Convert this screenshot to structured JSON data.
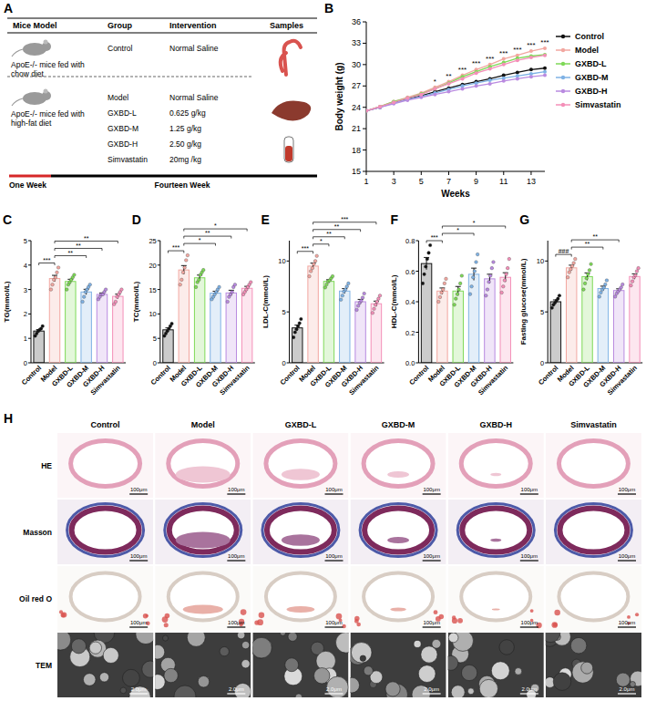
{
  "panel_letters": [
    "A",
    "B",
    "C",
    "D",
    "E",
    "F",
    "G",
    "H"
  ],
  "table": {
    "header": [
      "Mice Model",
      "Group",
      "Intervention",
      "Samples"
    ],
    "models": [
      {
        "label": "ApoE-/- mice fed with chow diet",
        "groups": [
          {
            "group": "Control",
            "intervention": "Normal Saline"
          }
        ]
      },
      {
        "label": "ApoE-/- mice fed with high-fat diet",
        "groups": [
          {
            "group": "Model",
            "intervention": "Normal Saline"
          },
          {
            "group": "GXBD-L",
            "intervention": "0.625 g/kg"
          },
          {
            "group": "GXBD-M",
            "intervention": "1.25 g/kg"
          },
          {
            "group": "GXBD-H",
            "intervention": "2.50 g/kg"
          },
          {
            "group": "Simvastatin",
            "intervention": "20mg /kg"
          }
        ]
      }
    ],
    "timeline": [
      "One Week",
      "Fourteen Week"
    ]
  },
  "chart_data": [
    {
      "type": "line",
      "x_label": "Weeks",
      "y_label": "Body weight (g)",
      "x": [
        1,
        2,
        3,
        4,
        5,
        6,
        7,
        8,
        9,
        10,
        11,
        12,
        13,
        14
      ],
      "xlim": [
        1,
        14
      ],
      "xticks": [
        1,
        3,
        5,
        7,
        9,
        11,
        13
      ],
      "ylim": [
        15,
        36
      ],
      "yticks": [
        15,
        18,
        21,
        24,
        27,
        30,
        33,
        36
      ],
      "legend": "right",
      "marker": "circle",
      "series": [
        {
          "name": "Control",
          "color": "#111111",
          "values": [
            23.5,
            24.0,
            24.7,
            25.2,
            25.6,
            26.2,
            26.7,
            27.2,
            27.6,
            28.0,
            28.5,
            28.9,
            29.3,
            29.5
          ]
        },
        {
          "name": "Model",
          "color": "#f2a7a0",
          "values": [
            23.5,
            24.1,
            24.8,
            25.4,
            26.0,
            26.8,
            27.6,
            28.5,
            29.3,
            30.0,
            30.8,
            31.3,
            31.9,
            32.3
          ]
        },
        {
          "name": "GXBD-L",
          "color": "#7ed957",
          "values": [
            23.5,
            24.1,
            24.8,
            25.3,
            25.9,
            26.6,
            27.4,
            28.3,
            29.0,
            29.7,
            30.3,
            30.9,
            31.2,
            31.4
          ]
        },
        {
          "name": "GXBD-M",
          "color": "#7fb2e5",
          "values": [
            23.5,
            24.0,
            24.6,
            25.1,
            25.5,
            26.0,
            26.5,
            27.0,
            27.4,
            27.8,
            28.1,
            28.4,
            28.7,
            29.0
          ]
        },
        {
          "name": "GXBD-H",
          "color": "#b98ae0",
          "values": [
            23.5,
            24.0,
            24.5,
            25.0,
            25.4,
            25.8,
            26.2,
            26.6,
            27.0,
            27.3,
            27.7,
            28.0,
            28.3,
            28.5
          ]
        },
        {
          "name": "Simvastatin",
          "color": "#f48fb8",
          "values": [
            23.5,
            24.1,
            24.7,
            25.3,
            25.8,
            26.6,
            27.3,
            28.0,
            28.8,
            29.4,
            30.0,
            30.6,
            31.0,
            31.3
          ]
        }
      ],
      "annotations": [
        {
          "x": 6,
          "text": "*"
        },
        {
          "x": 7,
          "text": "**"
        },
        {
          "x": 8,
          "text": "***"
        },
        {
          "x": 9,
          "text": "***"
        },
        {
          "x": 10,
          "text": "***"
        },
        {
          "x": 11,
          "text": "***"
        },
        {
          "x": 12,
          "text": "***"
        },
        {
          "x": 13,
          "text": "***"
        },
        {
          "x": 14,
          "text": "***"
        }
      ]
    },
    {
      "type": "bar",
      "y_label": "TG(mmol/L)",
      "categories": [
        "Control",
        "Model",
        "GXBD-L",
        "GXBD-M",
        "GXBD-H",
        "Simvastatin"
      ],
      "colors": [
        "#111111",
        "#f2a7a0",
        "#7ed957",
        "#7fb2e5",
        "#b98ae0",
        "#f48fb8"
      ],
      "ylim": [
        0,
        5
      ],
      "yticks": [
        0,
        1,
        2,
        3,
        4,
        5
      ],
      "values": [
        1.3,
        3.45,
        3.33,
        2.9,
        2.8,
        2.72
      ],
      "errors": [
        0.06,
        0.13,
        0.09,
        0.11,
        0.06,
        0.09
      ],
      "points": [
        [
          1.1,
          1.2,
          1.3,
          1.35,
          1.4,
          1.5
        ],
        [
          3.0,
          3.2,
          3.4,
          3.5,
          3.7,
          3.9
        ],
        [
          3.0,
          3.2,
          3.3,
          3.4,
          3.5,
          3.6
        ],
        [
          2.5,
          2.7,
          2.9,
          3.0,
          3.1,
          3.2
        ],
        [
          2.6,
          2.7,
          2.8,
          2.8,
          2.9,
          3.0
        ],
        [
          2.4,
          2.5,
          2.7,
          2.8,
          2.9,
          3.0
        ]
      ],
      "brackets": [
        {
          "from": "Control",
          "to": "Model",
          "text": "***"
        },
        {
          "from": "Model",
          "to": "GXBD-M",
          "text": "**"
        },
        {
          "from": "Model",
          "to": "GXBD-H",
          "text": "**"
        },
        {
          "from": "Model",
          "to": "Simvastatin",
          "text": "**"
        }
      ]
    },
    {
      "type": "bar",
      "y_label": "TC(mmol/L)",
      "categories": [
        "Control",
        "Model",
        "GXBD-L",
        "GXBD-M",
        "GXBD-H",
        "Simvastatin"
      ],
      "colors": [
        "#111111",
        "#f2a7a0",
        "#7ed957",
        "#7fb2e5",
        "#b98ae0",
        "#f48fb8"
      ],
      "ylim": [
        0,
        25
      ],
      "yticks": [
        0,
        5,
        10,
        15,
        20,
        25
      ],
      "values": [
        6.75,
        19,
        17.4,
        14.25,
        14.3,
        15.25
      ],
      "errors": [
        0.4,
        0.9,
        0.55,
        0.4,
        0.55,
        0.4
      ],
      "points": [
        [
          5.5,
          6.0,
          6.5,
          7.0,
          7.5,
          8.0
        ],
        [
          16,
          17,
          18.5,
          19.5,
          21,
          22
        ],
        [
          15.5,
          16.5,
          17,
          18,
          18.5,
          19
        ],
        [
          13,
          13.5,
          14,
          14.5,
          15,
          15.5
        ],
        [
          12.5,
          13.5,
          14,
          14.5,
          15.5,
          16
        ],
        [
          14,
          14.5,
          15,
          15.5,
          16,
          16.5
        ]
      ],
      "brackets": [
        {
          "from": "Control",
          "to": "Model",
          "text": "***"
        },
        {
          "from": "Model",
          "to": "GXBD-M",
          "text": "*"
        },
        {
          "from": "Model",
          "to": "GXBD-H",
          "text": "**"
        },
        {
          "from": "Model",
          "to": "Simvastatin",
          "text": "*"
        }
      ]
    },
    {
      "type": "bar",
      "y_label": "LDL-C(mmol/L)",
      "categories": [
        "Control",
        "Model",
        "GXBD-L",
        "GXBD-M",
        "GXBD-H",
        "Simvastatin"
      ],
      "colors": [
        "#111111",
        "#f2a7a0",
        "#7ed957",
        "#7fb2e5",
        "#b98ae0",
        "#f48fb8"
      ],
      "ylim": [
        0,
        12
      ],
      "yticks": [
        0,
        5,
        10
      ],
      "values": [
        3.43,
        9.5,
        8.0,
        7.05,
        6.0,
        5.8
      ],
      "errors": [
        0.27,
        0.29,
        0.16,
        0.24,
        0.23,
        0.26
      ],
      "points": [
        [
          2.5,
          3.0,
          3.3,
          3.6,
          3.9,
          4.3
        ],
        [
          8.5,
          9.0,
          9.3,
          9.7,
          10.0,
          10.5
        ],
        [
          7.4,
          7.7,
          8.0,
          8.1,
          8.3,
          8.5
        ],
        [
          6.2,
          6.6,
          7.0,
          7.2,
          7.5,
          7.8
        ],
        [
          5.2,
          5.6,
          5.9,
          6.1,
          6.4,
          6.8
        ],
        [
          4.9,
          5.3,
          5.7,
          6.0,
          6.3,
          6.6
        ]
      ],
      "brackets": [
        {
          "from": "Control",
          "to": "Model",
          "text": "***"
        },
        {
          "from": "Model",
          "to": "GXBD-L",
          "text": "*"
        },
        {
          "from": "Model",
          "to": "GXBD-M",
          "text": "**"
        },
        {
          "from": "Model",
          "to": "GXBD-H",
          "text": "**"
        },
        {
          "from": "Model",
          "to": "Simvastatin",
          "text": "***"
        }
      ]
    },
    {
      "type": "bar",
      "y_label": "HDL-C(mmol/L)",
      "categories": [
        "Control",
        "Model",
        "GXBD-L",
        "GXBD-M",
        "GXBD-H",
        "Simvastatin"
      ],
      "colors": [
        "#111111",
        "#f2a7a0",
        "#7ed957",
        "#7fb2e5",
        "#b98ae0",
        "#f48fb8"
      ],
      "ylim": [
        0,
        0.8
      ],
      "yticks": [
        {
          "value": 0,
          "label": "0.0"
        },
        0.2,
        0.4,
        0.6,
        0.8
      ],
      "values": [
        0.65,
        0.47,
        0.47,
        0.58,
        0.55,
        0.56
      ],
      "errors": [
        0.04,
        0.02,
        0.03,
        0.04,
        0.03,
        0.03
      ],
      "points": [
        [
          0.52,
          0.58,
          0.63,
          0.68,
          0.72,
          0.77
        ],
        [
          0.4,
          0.43,
          0.46,
          0.48,
          0.52,
          0.55
        ],
        [
          0.38,
          0.42,
          0.45,
          0.48,
          0.52,
          0.57
        ],
        [
          0.45,
          0.5,
          0.56,
          0.6,
          0.66,
          0.71
        ],
        [
          0.44,
          0.48,
          0.53,
          0.57,
          0.62,
          0.66
        ],
        [
          0.46,
          0.5,
          0.54,
          0.58,
          0.62,
          0.68
        ]
      ],
      "brackets": [
        {
          "from": "Control",
          "to": "Model",
          "text": "***"
        },
        {
          "from": "Model",
          "to": "GXBD-M",
          "text": "*"
        },
        {
          "from": "Model",
          "to": "Simvastatin",
          "text": "*"
        }
      ]
    },
    {
      "type": "bar",
      "y_label": "Fasting glucose(mmol/L)",
      "categories": [
        "Control",
        "Model",
        "GXBD-L",
        "GXBD-M",
        "GXBD-H",
        "Simvastatin"
      ],
      "colors": [
        "#111111",
        "#f2a7a0",
        "#7ed957",
        "#7fb2e5",
        "#b98ae0",
        "#f48fb8"
      ],
      "ylim": [
        0,
        12
      ],
      "yticks": [
        0,
        5,
        10
      ],
      "values": [
        6.0,
        9.33,
        8.47,
        7.3,
        7.1,
        8.48
      ],
      "errors": [
        0.18,
        0.26,
        0.36,
        0.23,
        0.17,
        0.26
      ],
      "points": [
        [
          5.4,
          5.7,
          5.9,
          6.1,
          6.3,
          6.6
        ],
        [
          8.4,
          8.9,
          9.2,
          9.5,
          9.8,
          10.2
        ],
        [
          7.2,
          7.8,
          8.3,
          8.7,
          9.1,
          9.7
        ],
        [
          6.5,
          6.9,
          7.2,
          7.4,
          7.7,
          8.1
        ],
        [
          6.5,
          6.8,
          7.0,
          7.2,
          7.4,
          7.7
        ],
        [
          7.6,
          8.0,
          8.4,
          8.6,
          9.0,
          9.3
        ]
      ],
      "brackets": [
        {
          "from": "Control",
          "to": "Model",
          "text": "###"
        },
        {
          "from": "Model",
          "to": "GXBD-M",
          "text": "**"
        },
        {
          "from": "Model",
          "to": "GXBD-H",
          "text": "**"
        }
      ]
    }
  ],
  "images": {
    "columns": [
      "Control",
      "Model",
      "GXBD-L",
      "GXBD-M",
      "GXBD-H",
      "Simvastatin"
    ],
    "rows": [
      "HE",
      "Masson",
      "Oil red O",
      "TEM"
    ],
    "scale_bars": [
      "100μm",
      "100μm",
      "100μm",
      "2.0μm"
    ]
  }
}
